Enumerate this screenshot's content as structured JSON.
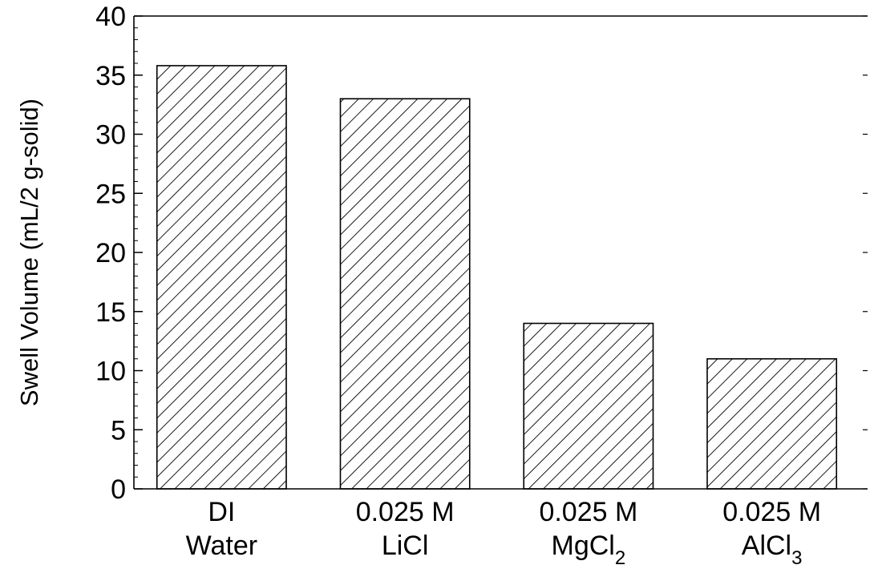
{
  "chart_data": {
    "type": "bar",
    "title": "",
    "xlabel": "",
    "ylabel": "Swell Volume (mL/2 g-solid)",
    "ylim": [
      0,
      40
    ],
    "y_ticks": [
      "0",
      "5",
      "10",
      "15",
      "20",
      "25",
      "30",
      "35",
      "40"
    ],
    "categories": [
      {
        "line1": "DI",
        "line2": "Water",
        "sub": ""
      },
      {
        "line1": "0.025 M",
        "line2": "LiCl",
        "sub": ""
      },
      {
        "line1": "0.025 M",
        "line2": "MgCl",
        "sub": "2"
      },
      {
        "line1": "0.025 M",
        "line2": "AlCl",
        "sub": "3"
      }
    ],
    "values": [
      35.8,
      33,
      14,
      11
    ],
    "bar_fill": "hatched",
    "bar_color": "#000000",
    "grid": false,
    "legend": "none"
  }
}
